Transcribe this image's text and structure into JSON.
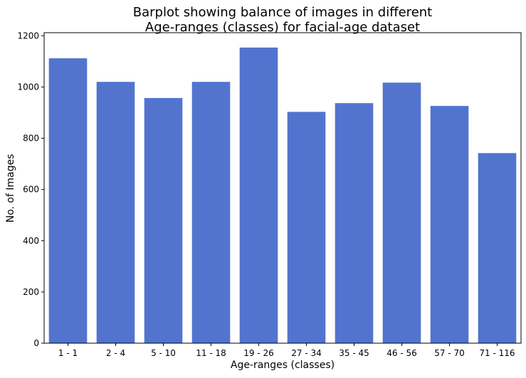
{
  "chart_data": {
    "type": "bar",
    "title_lines": [
      "Barplot showing balance of images in different",
      "Age-ranges (classes) for facial-age dataset"
    ],
    "xlabel": "Age-ranges (classes)",
    "ylabel": "No. of Images",
    "categories": [
      "1 - 1",
      "2 - 4",
      "5 - 10",
      "11 - 18",
      "19 - 26",
      "27 - 34",
      "35 - 45",
      "46 - 56",
      "57 - 70",
      "71 - 116"
    ],
    "values": [
      1112,
      1020,
      957,
      1020,
      1154,
      903,
      937,
      1017,
      926,
      742
    ],
    "ylim": [
      0,
      1212
    ],
    "yticks": [
      0,
      200,
      400,
      600,
      800,
      1000,
      1200
    ],
    "grid": false,
    "legend": "none",
    "colors": {
      "bar": "#5274cf",
      "axis": "#000000",
      "background": "#ffffff"
    }
  }
}
